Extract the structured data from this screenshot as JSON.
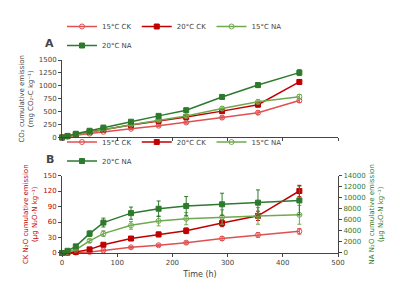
{
  "chart_data": [
    {
      "type": "line",
      "title": "A",
      "x": [
        0,
        10,
        25,
        50,
        75,
        125,
        175,
        225,
        290,
        355,
        430
      ],
      "ylabel": "CO₂ cumulative emission\n(mg CO₂-C kg⁻¹)",
      "xlim": [
        0,
        500
      ],
      "xticks": [
        0,
        100,
        200,
        300,
        400,
        500
      ],
      "ylim": [
        0,
        1500
      ],
      "yticks": [
        0,
        250,
        500,
        750,
        1000,
        1250,
        1500
      ],
      "grid": false,
      "legend": "upper left",
      "tick_labels": "y",
      "series": [
        {
          "name": "15°C CK",
          "color": "#e05050",
          "marker": "circle-open",
          "values": [
            0,
            18,
            42,
            75,
            110,
            168,
            228,
            290,
            385,
            480,
            715
          ],
          "errors": [
            0,
            4,
            7,
            9,
            11,
            16,
            20,
            24,
            28,
            33,
            38
          ]
        },
        {
          "name": "20°C CK",
          "color": "#c00000",
          "marker": "square",
          "values": [
            0,
            25,
            58,
            105,
            152,
            240,
            320,
            395,
            510,
            635,
            1075
          ],
          "errors": [
            0,
            5,
            8,
            11,
            14,
            20,
            26,
            30,
            36,
            43,
            48
          ]
        },
        {
          "name": "15°C NA",
          "color": "#70a850",
          "marker": "circle-open",
          "values": [
            0,
            22,
            50,
            100,
            150,
            248,
            335,
            415,
            560,
            690,
            790
          ],
          "errors": [
            0,
            4,
            7,
            10,
            14,
            18,
            23,
            28,
            33,
            38,
            43
          ]
        },
        {
          "name": "20°C NA",
          "color": "#2d7a2d",
          "marker": "square",
          "values": [
            0,
            30,
            72,
            130,
            192,
            305,
            418,
            528,
            785,
            1015,
            1255
          ],
          "errors": [
            0,
            6,
            9,
            12,
            16,
            23,
            29,
            35,
            42,
            49,
            57
          ]
        }
      ]
    },
    {
      "type": "line",
      "title": "B",
      "x": [
        0,
        10,
        25,
        50,
        75,
        125,
        175,
        225,
        290,
        355,
        430
      ],
      "xlabel": "Time (h)",
      "ylabel": "CK N₂O cumulative emission\n(μg N₂O-N kg⁻¹)",
      "y2label": "NA N₂O cumulative emission\n(μg N₂O-N kg⁻¹)",
      "xlim": [
        0,
        500
      ],
      "xticks": [
        0,
        100,
        200,
        300,
        400,
        500
      ],
      "ylim": [
        0,
        150
      ],
      "yticks": [
        0,
        30,
        60,
        90,
        120,
        150
      ],
      "y2lim": [
        0,
        14000
      ],
      "y2ticks": [
        0,
        2000,
        4000,
        6000,
        8000,
        10000,
        12000,
        14000
      ],
      "grid": false,
      "legend": "upper left",
      "series": [
        {
          "name": "15°C CK",
          "color": "#e05050",
          "marker": "circle-open",
          "values": [
            0,
            0.3,
            0.8,
            2.0,
            5.0,
            11,
            15,
            20,
            28,
            35,
            42
          ],
          "errors": [
            0,
            0.3,
            0.5,
            0.8,
            1.2,
            1.8,
            2.2,
            2.8,
            3.5,
            4.5,
            5.5
          ]
        },
        {
          "name": "20°C CK",
          "color": "#c00000",
          "marker": "square",
          "values": [
            0,
            0.8,
            2.0,
            7.0,
            16,
            28,
            36,
            43,
            58,
            72,
            120
          ],
          "errors": [
            0,
            0.4,
            0.8,
            1.5,
            2.5,
            3.5,
            4.5,
            5.5,
            7,
            9,
            11
          ]
        },
        {
          "name": "15°C NA",
          "color": "#70a850",
          "marker": "circle-open",
          "axis": "y2",
          "values": [
            0,
            200,
            600,
            2200,
            3500,
            5000,
            5800,
            6200,
            6500,
            6700,
            6900
          ],
          "errors": [
            0,
            30,
            80,
            300,
            500,
            700,
            900,
            1100,
            1300,
            1500,
            1700
          ]
        },
        {
          "name": "20°C NA",
          "color": "#2d7a2d",
          "marker": "square",
          "axis": "y2",
          "values": [
            0,
            400,
            1200,
            3500,
            5500,
            7200,
            8000,
            8500,
            8800,
            9100,
            9500
          ],
          "errors": [
            0,
            60,
            150,
            500,
            800,
            1100,
            1400,
            1700,
            2000,
            2300,
            2600
          ]
        }
      ]
    }
  ]
}
